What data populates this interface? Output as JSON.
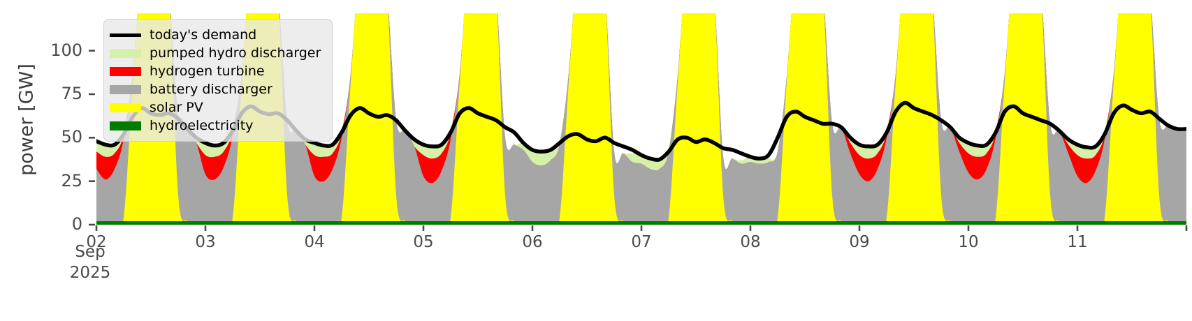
{
  "chart_data": {
    "type": "area",
    "stacked": true,
    "title": "",
    "ylabel": "power [GW]",
    "x_start_label": {
      "month": "Sep",
      "year": "2025"
    },
    "x_step_hours": 2,
    "x_range_hours": [
      0,
      240
    ],
    "ylim": [
      0,
      121.5
    ],
    "yticks": [
      0,
      25,
      50,
      75,
      100
    ],
    "xticks": {
      "hours": [
        0,
        24,
        48,
        72,
        96,
        120,
        144,
        168,
        192,
        216
      ],
      "labels": [
        "02",
        "03",
        "04",
        "05",
        "06",
        "07",
        "08",
        "09",
        "10",
        "11"
      ]
    },
    "grid": false,
    "legend_position": "upper left",
    "background_color": "#ffffff",
    "tick_color": "#4a4a4a",
    "demand_line": {
      "name": "today's demand",
      "color": "#000000",
      "values": [
        48,
        46,
        46,
        52,
        62,
        67,
        64,
        63,
        64,
        61,
        55,
        50,
        47,
        45.5,
        47,
        54,
        64,
        68,
        65,
        63.5,
        64,
        60,
        54,
        49,
        47,
        45.5,
        46,
        53,
        63,
        67,
        64,
        62,
        63,
        60,
        54,
        49,
        46,
        45,
        46,
        53,
        64,
        67,
        64,
        62,
        60,
        56,
        53,
        47,
        43,
        42,
        43,
        47,
        51,
        52,
        49,
        48,
        50,
        47,
        45,
        43,
        40,
        38,
        37.5,
        42,
        49,
        50,
        47.5,
        49,
        47,
        44,
        43,
        41,
        39,
        38,
        40,
        50,
        62,
        65,
        62,
        60,
        58,
        58,
        56,
        50,
        46,
        45,
        46,
        53,
        65,
        70,
        67,
        65,
        63,
        60,
        56,
        50,
        47,
        45.5,
        46,
        53,
        65,
        68,
        64,
        62,
        60,
        58,
        54,
        49,
        46,
        44.5,
        45,
        52,
        64,
        68.5,
        66,
        64,
        65,
        61,
        57,
        55,
        55
      ]
    },
    "series": [
      {
        "name": "hydroelectricity",
        "color": "#007d00",
        "constant": 2
      },
      {
        "name": "solar PV",
        "color": "#ffff00",
        "values": [
          0,
          0,
          0,
          2,
          80,
          150,
          155,
          150,
          130,
          15,
          0,
          0,
          0,
          0,
          0,
          2,
          80,
          150,
          155,
          150,
          130,
          15,
          0,
          0,
          0,
          0,
          0,
          2,
          80,
          150,
          155,
          150,
          130,
          15,
          0,
          0,
          0,
          0,
          0,
          2,
          80,
          150,
          155,
          150,
          130,
          15,
          0,
          0,
          0,
          0,
          0,
          2,
          80,
          150,
          155,
          150,
          130,
          15,
          0,
          0,
          0,
          0,
          0,
          2,
          80,
          150,
          155,
          150,
          130,
          15,
          0,
          0,
          0,
          0,
          0,
          2,
          80,
          150,
          155,
          150,
          130,
          15,
          0,
          0,
          0,
          0,
          0,
          2,
          80,
          150,
          155,
          150,
          130,
          15,
          0,
          0,
          0,
          0,
          0,
          2,
          80,
          150,
          155,
          150,
          130,
          15,
          0,
          0,
          0,
          0,
          0,
          2,
          80,
          150,
          155,
          150,
          130,
          15,
          0,
          0,
          0
        ]
      },
      {
        "name": "battery discharger",
        "color": "#a6a6a6",
        "values": [
          30,
          24,
          30,
          45,
          5,
          0,
          0,
          0,
          0,
          44,
          53,
          45,
          27,
          24,
          31,
          47,
          5,
          0,
          0,
          0,
          0,
          43,
          52,
          44,
          26,
          23,
          30,
          46,
          5,
          0,
          0,
          0,
          0,
          43,
          52,
          43,
          26,
          22,
          29,
          45,
          5,
          0,
          0,
          0,
          0,
          33,
          44,
          41,
          34,
          32,
          35,
          42,
          5,
          0,
          0,
          0,
          0,
          25,
          39,
          34,
          33,
          30,
          30,
          38,
          4,
          0,
          0,
          0,
          0,
          22,
          36,
          33,
          34,
          33,
          34,
          38,
          3,
          0,
          0,
          0,
          0,
          41,
          54,
          39,
          27,
          23,
          30,
          46,
          5,
          0,
          0,
          0,
          0,
          43,
          54,
          40,
          28,
          24,
          30,
          46,
          5,
          0,
          0,
          0,
          0,
          41,
          52,
          39,
          26,
          22,
          29,
          45,
          5,
          0,
          0,
          0,
          0,
          44,
          55,
          53,
          53
        ]
      },
      {
        "name": "hydrogen turbine",
        "color": "#ff0000",
        "values": [
          10,
          13,
          9,
          3,
          0,
          0,
          0,
          0,
          0,
          0,
          0,
          0,
          11,
          13,
          9,
          3,
          0,
          0,
          0,
          0,
          0,
          0,
          0,
          0,
          12,
          14,
          9,
          3,
          0,
          0,
          0,
          0,
          0,
          0,
          0,
          0,
          12,
          14,
          10,
          4,
          0,
          0,
          0,
          0,
          0,
          0,
          0,
          0,
          0,
          0,
          0,
          0,
          0,
          0,
          0,
          0,
          0,
          0,
          0,
          0,
          0,
          0,
          0,
          0,
          0,
          0,
          0,
          0,
          0,
          0,
          0,
          0,
          0,
          0,
          0,
          0,
          0,
          0,
          0,
          0,
          0,
          0,
          0,
          6,
          11,
          13,
          9,
          3,
          0,
          0,
          0,
          0,
          0,
          0,
          0,
          5,
          11,
          13,
          9,
          3,
          0,
          0,
          0,
          0,
          0,
          0,
          0,
          5,
          12,
          14,
          9,
          3,
          0,
          0,
          0,
          0,
          0,
          0,
          0,
          0,
          0
        ]
      },
      {
        "name": "pumped hydro discharger",
        "color": "#d5f0a8",
        "values": [
          6,
          7,
          5,
          2,
          0,
          0,
          0,
          0,
          0,
          0,
          0,
          3,
          7,
          7,
          5,
          2,
          0,
          0,
          0,
          0,
          0,
          0,
          0,
          3,
          7,
          7,
          5,
          2,
          0,
          0,
          0,
          0,
          0,
          0,
          0,
          4,
          6,
          7,
          5,
          2,
          0,
          0,
          0,
          0,
          0,
          0,
          0,
          4,
          7,
          8,
          6,
          3,
          0,
          0,
          0,
          0,
          0,
          0,
          0,
          5,
          6,
          6,
          5,
          2,
          0,
          0,
          0,
          0,
          0,
          0,
          0,
          2,
          3,
          3,
          2,
          0,
          0,
          0,
          0,
          0,
          0,
          0,
          0,
          3,
          6,
          7,
          5,
          2,
          0,
          0,
          0,
          0,
          0,
          0,
          0,
          3,
          6,
          7,
          5,
          2,
          0,
          0,
          0,
          0,
          0,
          0,
          0,
          3,
          6,
          7,
          5,
          2,
          0,
          0,
          0,
          0,
          0,
          0,
          0,
          0,
          0
        ]
      }
    ],
    "legend": [
      {
        "label": "today's demand",
        "color": "#000000",
        "type": "line"
      },
      {
        "label": "pumped hydro discharger",
        "color": "#d5f0a8",
        "type": "patch"
      },
      {
        "label": "hydrogen turbine",
        "color": "#ff0000",
        "type": "patch"
      },
      {
        "label": "battery discharger",
        "color": "#a6a6a6",
        "type": "patch"
      },
      {
        "label": "solar PV",
        "color": "#ffff00",
        "type": "patch"
      },
      {
        "label": "hydroelectricity",
        "color": "#007d00",
        "type": "patch"
      }
    ]
  }
}
